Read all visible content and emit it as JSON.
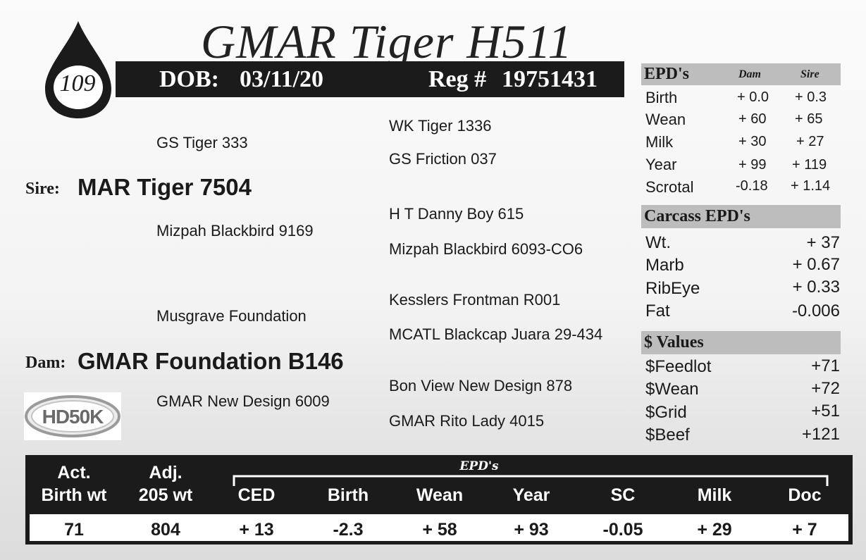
{
  "header": {
    "title": "GMAR Tiger H511",
    "lot_number": "109",
    "dob_label": "DOB:",
    "dob": "03/11/20",
    "reg_label": "Reg #",
    "reg": "19751431"
  },
  "pedigree": {
    "sire_label": "Sire:",
    "sire": "MAR Tiger 7504",
    "sire_sire": "GS Tiger 333",
    "sire_dam": "Mizpah Blackbird 9169",
    "sire_sire_sire": "WK Tiger 1336",
    "sire_sire_dam": "GS Friction 037",
    "sire_dam_sire": "H T Danny Boy 615",
    "sire_dam_dam": "Mizpah Blackbird 6093-CO6",
    "dam_label": "Dam:",
    "dam": "GMAR Foundation B146",
    "dam_sire": "Musgrave Foundation",
    "dam_dam": "GMAR New Design 6009",
    "dam_sire_sire": "Kesslers Frontman R001",
    "dam_sire_dam": "MCATL Blackcap Juara 29-434",
    "dam_dam_sire": "Bon View New Design 878",
    "dam_dam_dam": "GMAR Rito Lady 4015"
  },
  "epd_panel": {
    "title": "EPD's",
    "col_dam": "Dam",
    "col_sire": "Sire",
    "rows": [
      {
        "trait": "Birth",
        "dam": "+ 0.0",
        "sire": "+ 0.3"
      },
      {
        "trait": "Wean",
        "dam": "+ 60",
        "sire": "+ 65"
      },
      {
        "trait": "Milk",
        "dam": "+ 30",
        "sire": "+ 27"
      },
      {
        "trait": "Year",
        "dam": "+ 99",
        "sire": "+ 119"
      },
      {
        "trait": "Scrotal",
        "dam": "-0.18",
        "sire": "+ 1.14"
      }
    ]
  },
  "carcass": {
    "title": "Carcass EPD's",
    "rows": [
      {
        "trait": "Wt.",
        "value": "+ 37"
      },
      {
        "trait": "Marb",
        "value": "+ 0.67"
      },
      {
        "trait": "RibEye",
        "value": "+ 0.33"
      },
      {
        "trait": "Fat",
        "value": "-0.006"
      }
    ]
  },
  "values": {
    "title": "$ Values",
    "rows": [
      {
        "trait": "$Feedlot",
        "value": "+71"
      },
      {
        "trait": "$Wean",
        "value": "+72"
      },
      {
        "trait": "$Grid",
        "value": "+51"
      },
      {
        "trait": "$Beef",
        "value": "+121"
      }
    ]
  },
  "logo": {
    "text": "HD50K"
  },
  "bottom_table": {
    "epd_group_label": "EPD's",
    "act_line1": "Act.",
    "act_line2": "Birth wt",
    "adj_line1": "Adj.",
    "adj_line2": "205 wt",
    "headers": [
      "CED",
      "Birth",
      "Wean",
      "Year",
      "SC",
      "Milk",
      "Doc"
    ],
    "act_value": "71",
    "adj_value": "804",
    "values": [
      "+ 13",
      "-2.3",
      "+ 58",
      "+ 93",
      "-0.05",
      "+ 29",
      "+ 7"
    ]
  }
}
